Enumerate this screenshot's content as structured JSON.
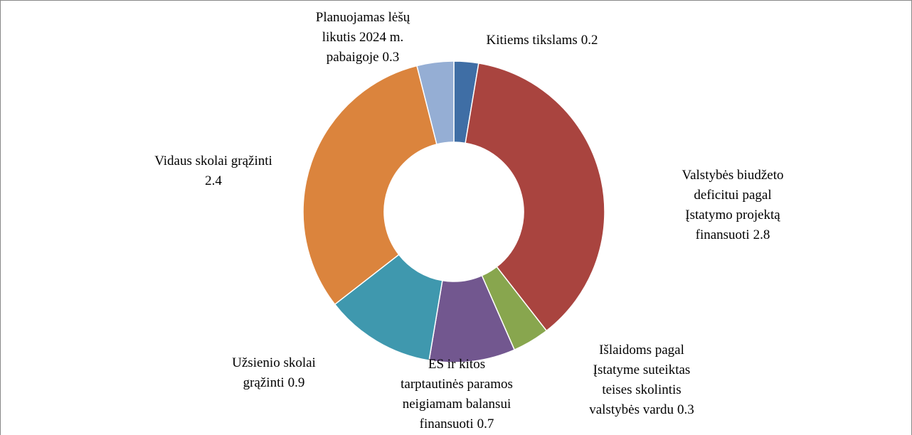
{
  "chart_data": {
    "type": "donut",
    "categories": [
      "Kitiems tikslams",
      "Valstybės biudžeto deficitui pagal Įstatymo projektą finansuoti",
      "Išlaidoms pagal Įstatyme suteiktas teises skolintis valstybės vardu",
      "ES ir kitos tarptautinės paramos neigiamam balansui finansuoti",
      "Užsienio skolai grąžinti",
      "Vidaus skolai grąžinti",
      "Planuojamas lėšų likutis 2024 m. pabaigoje"
    ],
    "values": [
      0.2,
      2.8,
      0.3,
      0.7,
      0.9,
      2.4,
      0.3
    ],
    "colors": [
      "#3f6ea5",
      "#a9443f",
      "#88a64e",
      "#72578f",
      "#3f98ae",
      "#db843d",
      "#95aed4"
    ]
  }
}
